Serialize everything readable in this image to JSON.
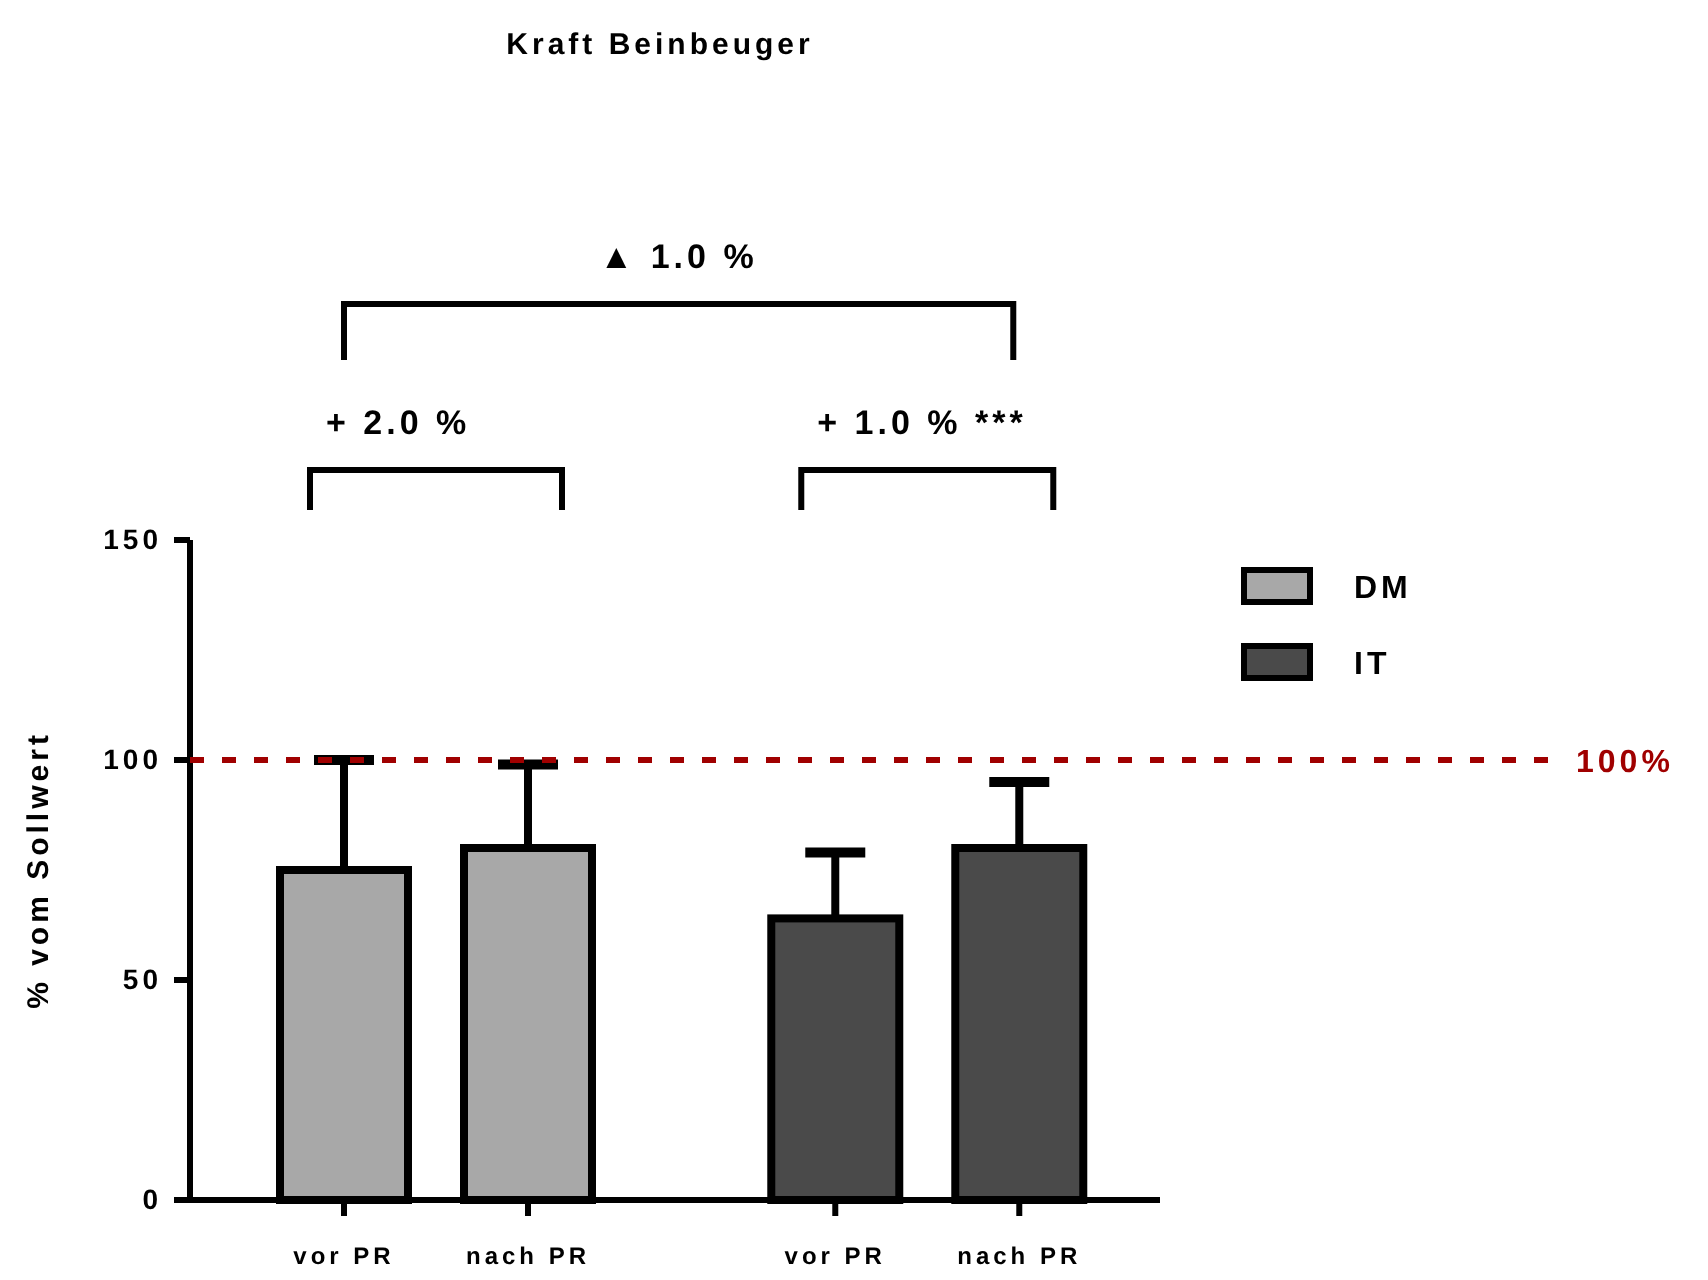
{
  "chart_data": {
    "type": "bar",
    "title": "Kraft Beinbeuger",
    "ylabel": "% vom Sollwert",
    "categories": [
      "vor PR",
      "nach PR",
      "vor PR",
      "nach PR"
    ],
    "series": [
      {
        "name": "DM",
        "color": "#a8a8a8",
        "values": [
          75,
          80,
          null,
          null
        ],
        "errors": [
          [
            75,
            100
          ],
          [
            80,
            99
          ],
          null,
          null
        ]
      },
      {
        "name": "IT",
        "color": "#4a4a4a",
        "values": [
          null,
          null,
          64,
          80
        ],
        "errors": [
          null,
          null,
          [
            64,
            79
          ],
          [
            80,
            95
          ]
        ]
      }
    ],
    "ylim": [
      0,
      150
    ],
    "yticks": [
      0,
      50,
      100,
      150
    ],
    "grid": false,
    "legend": "right",
    "ref_lines": [
      {
        "axis": "y",
        "value": 100,
        "label": "100%",
        "color": "#a00000",
        "line_style": "dashed"
      }
    ],
    "annotations": [
      "▲ 1.0 %",
      "+ 2.0 %",
      "+ 1.0 % ***"
    ]
  }
}
